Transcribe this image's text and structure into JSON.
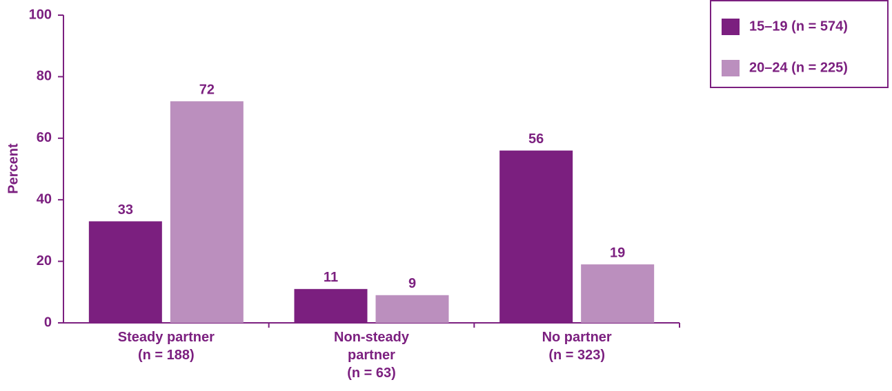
{
  "chart_data": {
    "type": "bar",
    "y_label": "Percent",
    "categories": [
      "Steady partner\n(n = 188)",
      "Non-steady\npartner\n(n = 63)",
      "No partner\n(n = 323)"
    ],
    "series": [
      {
        "name": "15–19 (n = 574)",
        "color": "#7b1f7f",
        "values": [
          33,
          11,
          56
        ]
      },
      {
        "name": "20–24 (n = 225)",
        "color": "#bb8fbe",
        "values": [
          72,
          9,
          19
        ]
      }
    ],
    "ylim": [
      0,
      100
    ],
    "yticks": [
      0,
      20,
      40,
      60,
      80,
      100
    ],
    "legend": "top-right"
  }
}
